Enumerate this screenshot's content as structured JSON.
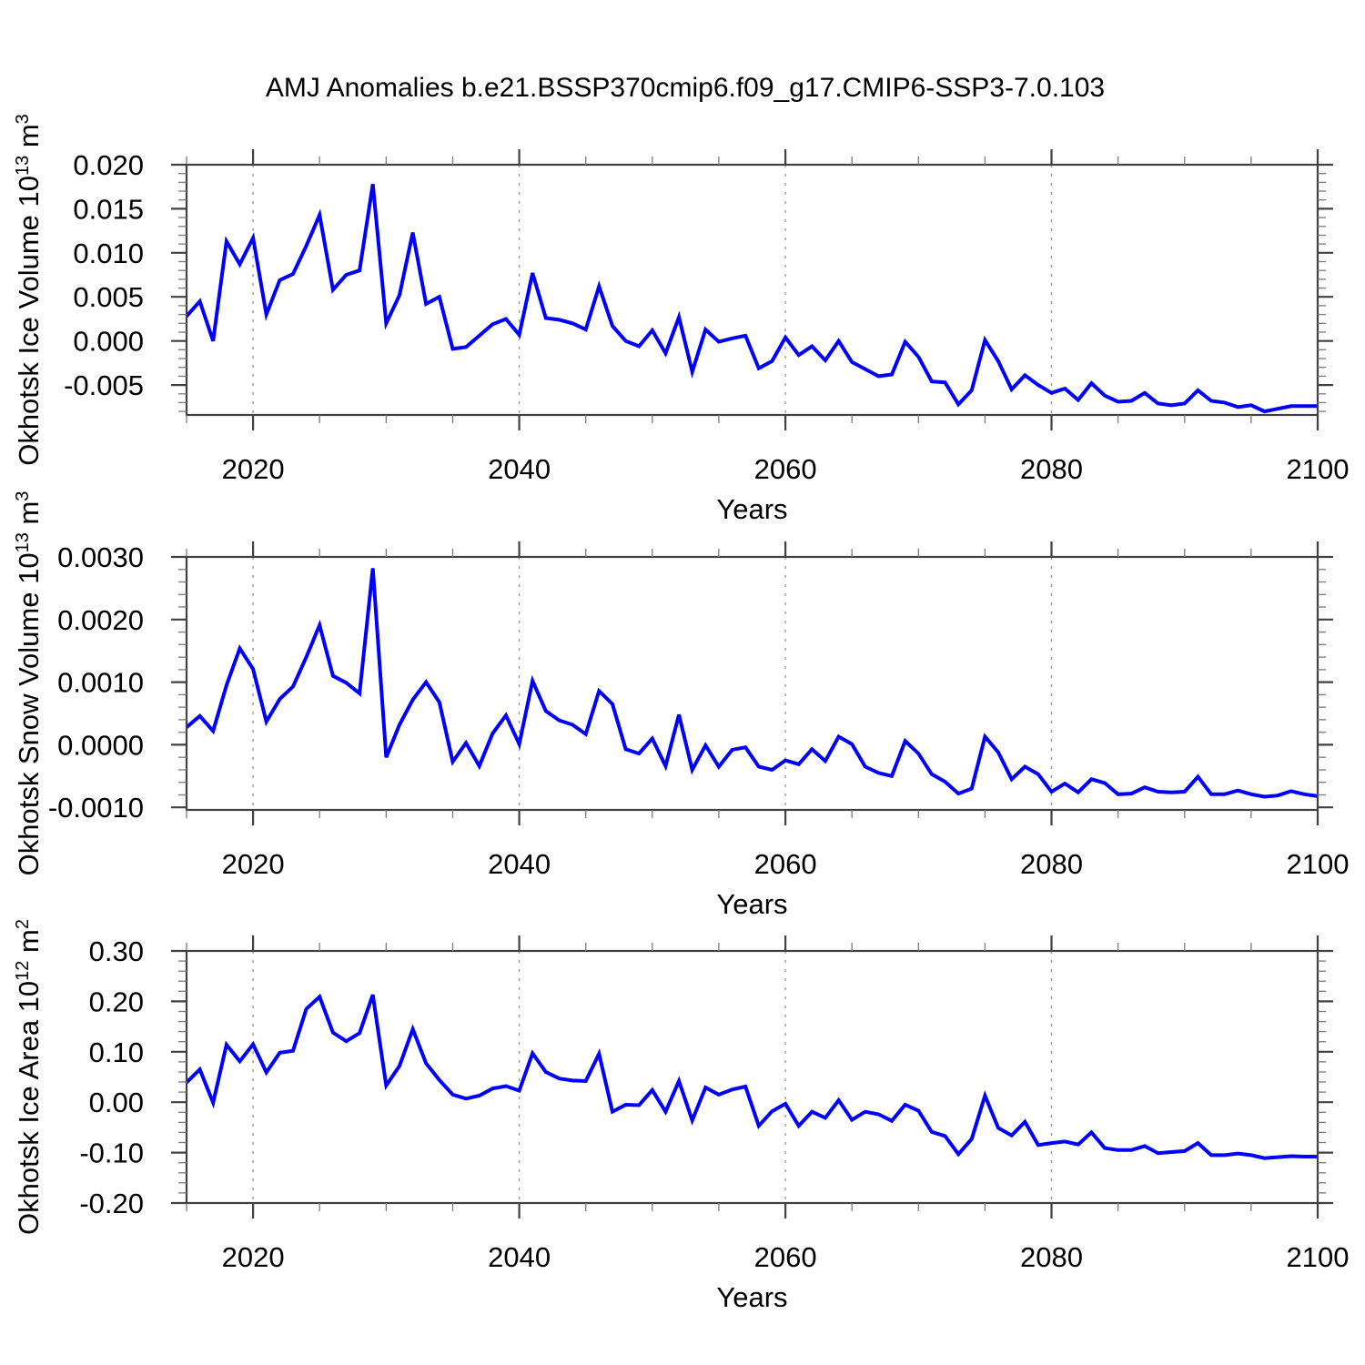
{
  "title": "AMJ Anomalies b.e21.BSSP370cmip6.f09_g17.CMIP6-SSP3-7.0.103",
  "line_color": "#0000ff",
  "x_axis": {
    "label": "Years",
    "range": [
      2015,
      2100
    ],
    "major_ticks": [
      2020,
      2040,
      2060,
      2080,
      2100
    ],
    "tick_labels": [
      "2020",
      "2040",
      "2060",
      "2080",
      "2100"
    ],
    "minor_step": 5,
    "gridlines": [
      2020,
      2040,
      2060,
      2080
    ]
  },
  "years": [
    2015,
    2016,
    2017,
    2018,
    2019,
    2020,
    2021,
    2022,
    2023,
    2024,
    2025,
    2026,
    2027,
    2028,
    2029,
    2030,
    2031,
    2032,
    2033,
    2034,
    2035,
    2036,
    2037,
    2038,
    2039,
    2040,
    2041,
    2042,
    2043,
    2044,
    2045,
    2046,
    2047,
    2048,
    2049,
    2050,
    2051,
    2052,
    2053,
    2054,
    2055,
    2056,
    2057,
    2058,
    2059,
    2060,
    2061,
    2062,
    2063,
    2064,
    2065,
    2066,
    2067,
    2068,
    2069,
    2070,
    2071,
    2072,
    2073,
    2074,
    2075,
    2076,
    2077,
    2078,
    2079,
    2080,
    2081,
    2082,
    2083,
    2084,
    2085,
    2086,
    2087,
    2088,
    2089,
    2090,
    2091,
    2092,
    2093,
    2094,
    2095,
    2096,
    2097,
    2098,
    2099,
    2100
  ],
  "chart_data": [
    {
      "type": "line",
      "name": "ice-volume",
      "ylabel": "Okhotsk Ice Volume 10^13 m^3",
      "ylabel_parts": [
        {
          "t": "Okhotsk Ice Volume 10",
          "sup": false
        },
        {
          "t": "13",
          "sup": true
        },
        {
          "t": " m",
          "sup": false
        },
        {
          "t": "3",
          "sup": true
        }
      ],
      "xlabel": "Years",
      "ylim": [
        -0.0084,
        0.02
      ],
      "yticks": [
        0.02,
        0.015,
        0.01,
        0.005,
        0.0,
        -0.005
      ],
      "ytick_labels": [
        "0.020",
        "0.015",
        "0.010",
        "0.005",
        "0.000",
        "-0.005"
      ],
      "yminor_step": 0.001,
      "grid": true,
      "legend": "none",
      "values": [
        0.0028,
        0.0045,
        0.0,
        0.0113,
        0.0087,
        0.0117,
        0.003,
        0.0069,
        0.0076,
        0.0108,
        0.0143,
        0.0058,
        0.0075,
        0.008,
        0.0178,
        0.002,
        0.0052,
        0.0123,
        0.0042,
        0.005,
        -0.0009,
        -0.0007,
        0.0006,
        0.0019,
        0.0025,
        0.0007,
        0.0077,
        0.0026,
        0.0024,
        0.002,
        0.0013,
        0.0062,
        0.0017,
        0.0,
        -0.0006,
        0.0012,
        -0.0014,
        0.0027,
        -0.0035,
        0.0013,
        -0.0001,
        0.0003,
        0.0006,
        -0.0031,
        -0.0023,
        0.0004,
        -0.0016,
        -0.0006,
        -0.0022,
        0.0,
        -0.0024,
        -0.0032,
        -0.004,
        -0.0038,
        -0.0001,
        -0.0018,
        -0.0046,
        -0.0047,
        -0.0072,
        -0.0056,
        0.0001,
        -0.0023,
        -0.0055,
        -0.0039,
        -0.005,
        -0.0059,
        -0.0054,
        -0.0067,
        -0.0048,
        -0.0062,
        -0.0069,
        -0.0068,
        -0.0059,
        -0.0071,
        -0.0073,
        -0.0071,
        -0.0056,
        -0.0068,
        -0.007,
        -0.0075,
        -0.0073,
        -0.008,
        -0.0077,
        -0.0074,
        -0.0074,
        -0.0074
      ]
    },
    {
      "type": "line",
      "name": "snow-volume",
      "ylabel": "Okhotsk Snow Volume 10^13 m^3",
      "ylabel_parts": [
        {
          "t": "Okhotsk Snow Volume 10",
          "sup": false
        },
        {
          "t": "13",
          "sup": true
        },
        {
          "t": " m",
          "sup": false
        },
        {
          "t": "3",
          "sup": true
        }
      ],
      "xlabel": "Years",
      "ylim": [
        -0.00104,
        0.003
      ],
      "yticks": [
        0.003,
        0.002,
        0.001,
        0.0,
        -0.001
      ],
      "ytick_labels": [
        "0.0030",
        "0.0020",
        "0.0010",
        "0.0000",
        "-0.0010"
      ],
      "yminor_step": 0.0002,
      "grid": true,
      "legend": "none",
      "values": [
        0.00028,
        0.00046,
        0.00022,
        0.00095,
        0.00154,
        0.00121,
        0.00037,
        0.00073,
        0.00093,
        0.0014,
        0.00191,
        0.0011,
        0.00099,
        0.00082,
        0.00282,
        -0.0002,
        0.00032,
        0.00072,
        0.001,
        0.00068,
        -0.00027,
        3e-05,
        -0.00034,
        0.00018,
        0.00047,
        1e-05,
        0.00102,
        0.00054,
        0.00039,
        0.00032,
        0.00017,
        0.00086,
        0.00065,
        -7e-05,
        -0.00014,
        0.0001,
        -0.00034,
        0.00048,
        -0.0004,
        -1e-05,
        -0.00035,
        -8e-05,
        -4e-05,
        -0.00035,
        -0.0004,
        -0.00025,
        -0.00031,
        -7e-05,
        -0.00026,
        0.00013,
        1e-05,
        -0.00035,
        -0.00045,
        -0.0005,
        6e-05,
        -0.00014,
        -0.00047,
        -0.00059,
        -0.00078,
        -0.0007,
        0.00013,
        -0.00012,
        -0.00055,
        -0.00035,
        -0.00047,
        -0.00075,
        -0.00062,
        -0.00076,
        -0.00055,
        -0.00061,
        -0.00079,
        -0.00078,
        -0.00068,
        -0.00075,
        -0.00076,
        -0.00075,
        -0.00051,
        -0.00079,
        -0.00079,
        -0.00073,
        -0.00079,
        -0.00083,
        -0.00081,
        -0.00074,
        -0.00079,
        -0.00082
      ]
    },
    {
      "type": "line",
      "name": "ice-area",
      "ylabel": "Okhotsk Ice Area 10^12 m^2",
      "ylabel_parts": [
        {
          "t": "Okhotsk Ice Area 10",
          "sup": false
        },
        {
          "t": "12",
          "sup": true
        },
        {
          "t": " m",
          "sup": false
        },
        {
          "t": "2",
          "sup": true
        }
      ],
      "xlabel": "Years",
      "ylim": [
        -0.2,
        0.3
      ],
      "yticks": [
        0.3,
        0.2,
        0.1,
        0.0,
        -0.1,
        -0.2
      ],
      "ytick_labels": [
        "0.30",
        "0.20",
        "0.10",
        "0.00",
        "-0.10",
        "-0.20"
      ],
      "yminor_step": 0.02,
      "grid": true,
      "legend": "none",
      "values": [
        0.039,
        0.065,
        -0.001,
        0.114,
        0.081,
        0.115,
        0.059,
        0.098,
        0.102,
        0.185,
        0.209,
        0.138,
        0.121,
        0.137,
        0.213,
        0.033,
        0.072,
        0.145,
        0.077,
        0.044,
        0.015,
        0.007,
        0.013,
        0.027,
        0.032,
        0.023,
        0.097,
        0.06,
        0.047,
        0.043,
        0.042,
        0.096,
        -0.019,
        -0.005,
        -0.006,
        0.024,
        -0.019,
        0.042,
        -0.036,
        0.029,
        0.015,
        0.025,
        0.031,
        -0.047,
        -0.018,
        -0.003,
        -0.047,
        -0.019,
        -0.031,
        0.004,
        -0.035,
        -0.019,
        -0.024,
        -0.037,
        -0.005,
        -0.017,
        -0.059,
        -0.067,
        -0.103,
        -0.073,
        0.013,
        -0.051,
        -0.066,
        -0.039,
        -0.085,
        -0.081,
        -0.078,
        -0.084,
        -0.06,
        -0.091,
        -0.095,
        -0.095,
        -0.087,
        -0.101,
        -0.099,
        -0.097,
        -0.081,
        -0.105,
        -0.105,
        -0.102,
        -0.105,
        -0.111,
        -0.109,
        -0.107,
        -0.108,
        -0.108
      ]
    }
  ]
}
